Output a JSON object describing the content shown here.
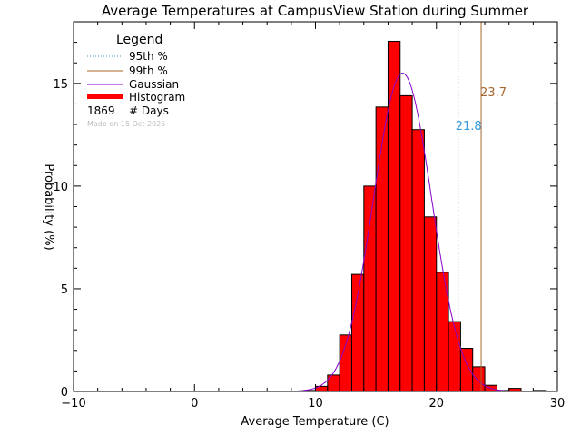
{
  "chart_data": {
    "type": "bar",
    "title": "Average Temperatures at CampusView Station during Summer",
    "xlabel": "Average Temperature (C)",
    "ylabel": "Probability (%)",
    "xlim": [
      -10,
      30
    ],
    "ylim": [
      0,
      18
    ],
    "xticks": [
      -10,
      0,
      10,
      20,
      30
    ],
    "yticks": [
      0,
      5,
      10,
      15
    ],
    "bin_width": 1,
    "bins": [
      {
        "x0": 9,
        "value": 0.05
      },
      {
        "x0": 10,
        "value": 0.25
      },
      {
        "x0": 11,
        "value": 0.8
      },
      {
        "x0": 12,
        "value": 2.75
      },
      {
        "x0": 13,
        "value": 5.7
      },
      {
        "x0": 14,
        "value": 10.0
      },
      {
        "x0": 15,
        "value": 13.85
      },
      {
        "x0": 16,
        "value": 17.05
      },
      {
        "x0": 17,
        "value": 14.4
      },
      {
        "x0": 18,
        "value": 12.75
      },
      {
        "x0": 19,
        "value": 8.5
      },
      {
        "x0": 20,
        "value": 5.8
      },
      {
        "x0": 21,
        "value": 3.4
      },
      {
        "x0": 22,
        "value": 2.1
      },
      {
        "x0": 23,
        "value": 1.2
      },
      {
        "x0": 24,
        "value": 0.3
      },
      {
        "x0": 25,
        "value": 0.05
      },
      {
        "x0": 26,
        "value": 0.15
      },
      {
        "x0": 28,
        "value": 0.05
      }
    ],
    "gaussian": {
      "name": "Gaussian",
      "mean": 17.2,
      "peak": 15.5,
      "sigma": 2.4
    },
    "percentile_95": {
      "name": "95th %",
      "value": 21.8,
      "label": "21.8"
    },
    "percentile_99": {
      "name": "99th %",
      "value": 23.7,
      "label": "23.7"
    },
    "legend": {
      "title": "Legend",
      "items": [
        "95th %",
        "99th %",
        "Gaussian",
        "Histogram"
      ],
      "count_value": "1869",
      "count_label": "# Days",
      "made_on": "Made on 15 Oct 2025",
      "placement": "top-left"
    },
    "colors": {
      "histogram": "#ff0000",
      "gaussian": "#8800cc",
      "p95": "#3399dd",
      "p99": "#a8662e",
      "made_on": "#bbbbbb"
    }
  }
}
